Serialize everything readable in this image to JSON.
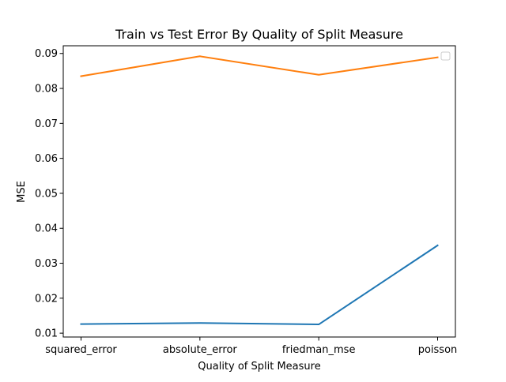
{
  "chart_data": {
    "type": "line",
    "title": "Train vs Test Error By Quality of Split Measure",
    "xlabel": "Quality of Split Measure",
    "ylabel": "MSE",
    "categories": [
      "squared_error",
      "absolute_error",
      "friedman_mse",
      "poisson"
    ],
    "series": [
      {
        "color": "#1f77b4",
        "values": [
          0.0126,
          0.0129,
          0.0125,
          0.0351
        ]
      },
      {
        "color": "#ff7f0e",
        "values": [
          0.0835,
          0.0892,
          0.0839,
          0.0889
        ]
      }
    ],
    "ylim": [
      0.0089,
      0.0922
    ],
    "yticks": [
      0.01,
      0.02,
      0.03,
      0.04,
      0.05,
      0.06,
      0.07,
      0.08,
      0.09
    ],
    "ytick_labels": [
      "0.01",
      "0.02",
      "0.03",
      "0.04",
      "0.05",
      "0.06",
      "0.07",
      "0.08",
      "0.09"
    ],
    "grid": false,
    "legend": {
      "position": "upper right",
      "entries": []
    }
  }
}
